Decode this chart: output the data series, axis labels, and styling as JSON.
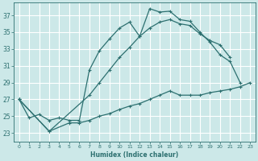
{
  "title": "",
  "xlabel": "Humidex (Indice chaleur)",
  "ylabel": "",
  "bg_color": "#cce8e8",
  "grid_color": "#b0d0d0",
  "line_color": "#2d7070",
  "xlim": [
    -0.5,
    23.5
  ],
  "ylim": [
    22.0,
    38.5
  ],
  "yticks": [
    23,
    25,
    27,
    29,
    31,
    33,
    35,
    37
  ],
  "xticks": [
    0,
    1,
    2,
    3,
    4,
    5,
    6,
    7,
    8,
    9,
    10,
    11,
    12,
    13,
    14,
    15,
    16,
    17,
    18,
    19,
    20,
    21,
    22,
    23
  ],
  "line1_x": [
    0,
    1,
    2,
    3,
    4,
    5,
    6,
    7,
    8,
    9,
    10,
    11,
    12,
    13,
    14,
    15,
    16,
    17,
    18,
    19,
    20,
    21,
    22
  ],
  "line1_y": [
    27.0,
    24.8,
    25.2,
    24.5,
    24.8,
    24.5,
    24.5,
    30.5,
    32.8,
    34.2,
    35.5,
    36.2,
    34.5,
    37.8,
    37.4,
    37.5,
    36.5,
    36.3,
    35.0,
    33.8,
    32.3,
    31.5,
    29.0
  ],
  "line2_x": [
    0,
    3,
    7,
    8,
    9,
    10,
    11,
    12,
    13,
    14,
    15,
    16,
    17,
    18,
    19,
    20,
    21
  ],
  "line2_y": [
    27.0,
    23.2,
    27.5,
    29.0,
    30.5,
    32.0,
    33.2,
    34.5,
    35.5,
    36.2,
    36.5,
    36.0,
    35.8,
    34.8,
    34.0,
    33.5,
    32.0
  ],
  "line3_x": [
    0,
    3,
    5,
    6,
    7,
    8,
    9,
    10,
    11,
    12,
    13,
    14,
    15,
    16,
    17,
    18,
    19,
    20,
    21,
    22,
    23
  ],
  "line3_y": [
    27.0,
    23.2,
    24.2,
    24.2,
    24.5,
    25.0,
    25.3,
    25.8,
    26.2,
    26.5,
    27.0,
    27.5,
    28.0,
    27.5,
    27.5,
    27.5,
    27.8,
    28.0,
    28.2,
    28.5,
    29.0
  ]
}
